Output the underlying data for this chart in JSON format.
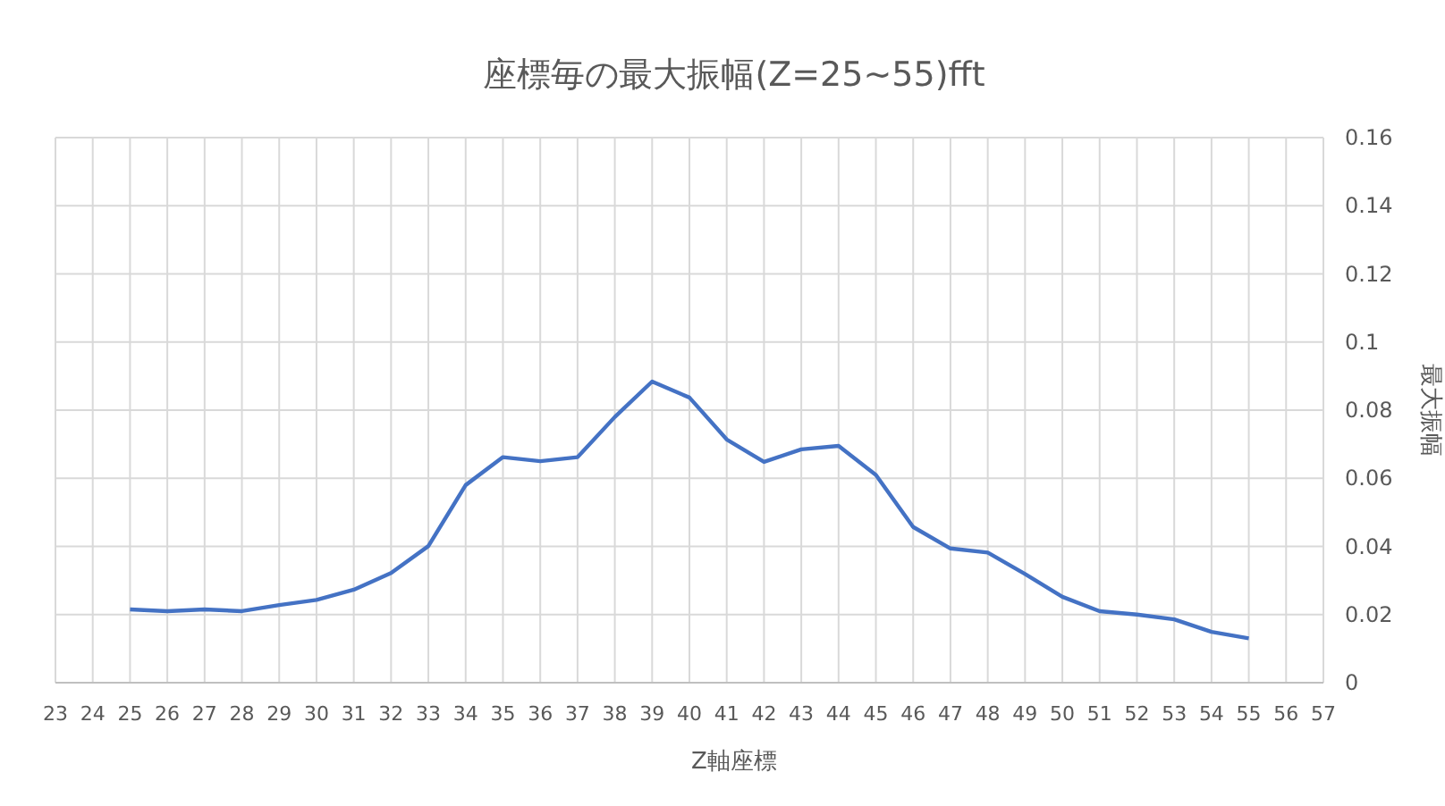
{
  "chart_data": {
    "type": "line",
    "title": "座標毎の最大振幅(Z=25~55)fft",
    "xlabel": "Z軸座標",
    "ylabel": "最大振幅",
    "x": [
      25,
      26,
      27,
      28,
      29,
      30,
      31,
      32,
      33,
      34,
      35,
      36,
      37,
      38,
      39,
      40,
      41,
      42,
      43,
      44,
      45,
      46,
      47,
      48,
      49,
      50,
      51,
      52,
      53,
      54,
      55
    ],
    "series": [
      {
        "color": "#4472c4",
        "values": [
          0.0215,
          0.021,
          0.0215,
          0.021,
          0.0228,
          0.0243,
          0.0273,
          0.0322,
          0.0401,
          0.058,
          0.0662,
          0.065,
          0.0662,
          0.078,
          0.0884,
          0.0837,
          0.0714,
          0.0648,
          0.0685,
          0.0695,
          0.061,
          0.0457,
          0.0394,
          0.0382,
          0.0319,
          0.0252,
          0.021,
          0.02,
          0.0186,
          0.0149,
          0.013
        ]
      }
    ],
    "xlim": [
      23,
      57
    ],
    "xticks": [
      23,
      24,
      25,
      26,
      27,
      28,
      29,
      30,
      31,
      32,
      33,
      34,
      35,
      36,
      37,
      38,
      39,
      40,
      41,
      42,
      43,
      44,
      45,
      46,
      47,
      48,
      49,
      50,
      51,
      52,
      53,
      54,
      55,
      56,
      57
    ],
    "ylim": [
      0,
      0.16
    ],
    "yticks": [
      0,
      0.02,
      0.04,
      0.06,
      0.08,
      0.1,
      0.12,
      0.14,
      0.16
    ],
    "grid": true,
    "marker": "none",
    "line_style": "solid"
  }
}
